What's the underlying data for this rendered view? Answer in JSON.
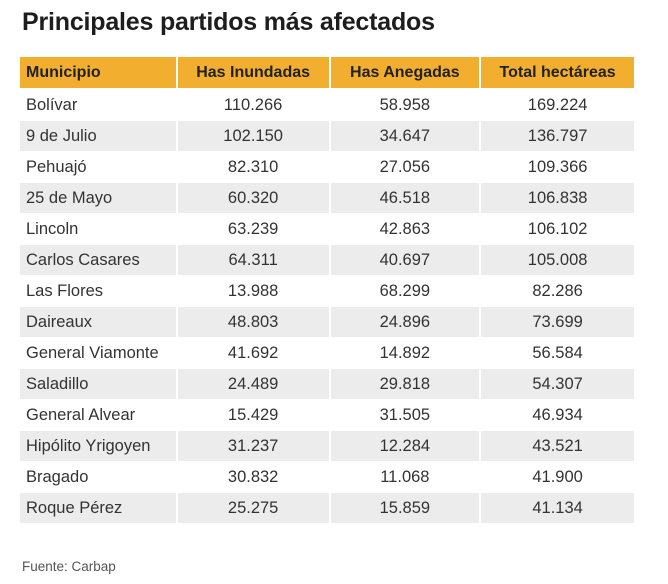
{
  "title": "Principales partidos más afectados",
  "source": "Fuente: Carbap",
  "colors": {
    "header": "#f2ae2f",
    "stripe": "#ececec"
  },
  "chart_data": {
    "type": "table",
    "title": "Principales partidos más afectados",
    "columns": [
      "Municipio",
      "Has Inundadas",
      "Has Anegadas",
      "Total hectáreas"
    ],
    "rows": [
      [
        "Bolívar",
        "110.266",
        "58.958",
        "169.224"
      ],
      [
        "9 de Julio",
        "102.150",
        "34.647",
        "136.797"
      ],
      [
        "Pehuajó",
        "82.310",
        "27.056",
        "109.366"
      ],
      [
        "25 de Mayo",
        "60.320",
        "46.518",
        "106.838"
      ],
      [
        "Lincoln",
        "63.239",
        "42.863",
        "106.102"
      ],
      [
        "Carlos Casares",
        "64.311",
        "40.697",
        "105.008"
      ],
      [
        "Las Flores",
        "13.988",
        "68.299",
        "82.286"
      ],
      [
        "Daireaux",
        "48.803",
        "24.896",
        "73.699"
      ],
      [
        "General Viamonte",
        "41.692",
        "14.892",
        "56.584"
      ],
      [
        "Saladillo",
        "24.489",
        "29.818",
        "54.307"
      ],
      [
        "General Alvear",
        "15.429",
        "31.505",
        "46.934"
      ],
      [
        "Hipólito Yrigoyen",
        "31.237",
        "12.284",
        "43.521"
      ],
      [
        "Bragado",
        "30.832",
        "11.068",
        "41.900"
      ],
      [
        "Roque Pérez",
        "25.275",
        "15.859",
        "41.134"
      ]
    ],
    "source": "Fuente: Carbap"
  }
}
